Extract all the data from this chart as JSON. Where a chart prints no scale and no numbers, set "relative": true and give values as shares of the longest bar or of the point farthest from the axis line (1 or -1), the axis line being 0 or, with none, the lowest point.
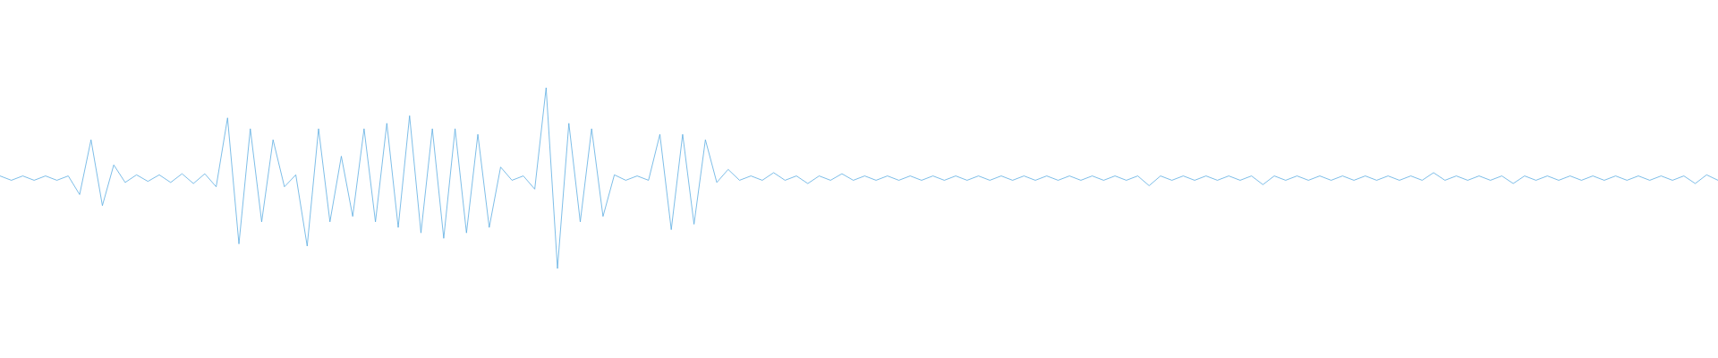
{
  "chart_data": {
    "type": "line",
    "relative": true,
    "categories": [
      null,
      null,
      null,
      null,
      null,
      null,
      null,
      null,
      null,
      null,
      null,
      null,
      null,
      null,
      null,
      null,
      null,
      null,
      null,
      null,
      null,
      null,
      null,
      null,
      null,
      null,
      null,
      null,
      null,
      null,
      null,
      null,
      null,
      null,
      null,
      null,
      null,
      null,
      null,
      null,
      null,
      null,
      null,
      null,
      null,
      null,
      null,
      null,
      null,
      null,
      null,
      null,
      null,
      null,
      null,
      null,
      null,
      null,
      null,
      null,
      null,
      null,
      null,
      null,
      null,
      null,
      null,
      null,
      null,
      null,
      null,
      null,
      null,
      null,
      null,
      null,
      null,
      null,
      null,
      null,
      null,
      null,
      null,
      null,
      null,
      null,
      null,
      null,
      null,
      null,
      null,
      null,
      null,
      null,
      null,
      null,
      null,
      null,
      null,
      null,
      null,
      null,
      null,
      null,
      null,
      null,
      null,
      null,
      null,
      null,
      null,
      null,
      null,
      null,
      null,
      null,
      null,
      null,
      null,
      null,
      null,
      null,
      null,
      null,
      null,
      null,
      null,
      null,
      null,
      null,
      null,
      null,
      null,
      null,
      null,
      null,
      null,
      null,
      null,
      null,
      null,
      null,
      null,
      null,
      null,
      null,
      null,
      null,
      null,
      null,
      null,
      null
    ],
    "series": [
      {
        "color": "#5dade2",
        "values": [
          0.512,
          0.488,
          0.512,
          0.488,
          0.512,
          0.488,
          0.512,
          0.409,
          0.712,
          0.348,
          0.573,
          0.476,
          0.518,
          0.482,
          0.518,
          0.476,
          0.524,
          0.47,
          0.524,
          0.452,
          0.833,
          0.136,
          0.773,
          0.258,
          0.712,
          0.452,
          0.518,
          0.124,
          0.773,
          0.258,
          0.621,
          0.288,
          0.773,
          0.258,
          0.803,
          0.227,
          0.845,
          0.197,
          0.773,
          0.167,
          0.773,
          0.197,
          0.742,
          0.227,
          0.561,
          0.488,
          0.512,
          0.439,
          1,
          0,
          0.803,
          0.258,
          0.773,
          0.288,
          0.518,
          0.488,
          0.512,
          0.488,
          0.742,
          0.215,
          0.742,
          0.245,
          0.712,
          0.476,
          0.548,
          0.488,
          0.512,
          0.488,
          0.53,
          0.488,
          0.512,
          0.47,
          0.512,
          0.488,
          0.524,
          0.488,
          0.512,
          0.488,
          0.512,
          0.488,
          0.512,
          0.488,
          0.512,
          0.488,
          0.512,
          0.488,
          0.512,
          0.488,
          0.512,
          0.488,
          0.512,
          0.488,
          0.512,
          0.488,
          0.512,
          0.488,
          0.512,
          0.488,
          0.512,
          0.488,
          0.512,
          0.458,
          0.512,
          0.488,
          0.512,
          0.488,
          0.512,
          0.488,
          0.512,
          0.488,
          0.512,
          0.464,
          0.512,
          0.488,
          0.512,
          0.488,
          0.512,
          0.488,
          0.512,
          0.488,
          0.512,
          0.488,
          0.512,
          0.488,
          0.512,
          0.488,
          0.53,
          0.488,
          0.512,
          0.488,
          0.512,
          0.488,
          0.512,
          0.47,
          0.512,
          0.488,
          0.512,
          0.488,
          0.512,
          0.488,
          0.512,
          0.488,
          0.512,
          0.488,
          0.512,
          0.488,
          0.512,
          0.488,
          0.512,
          0.47,
          0.518,
          0.488
        ]
      }
    ]
  }
}
